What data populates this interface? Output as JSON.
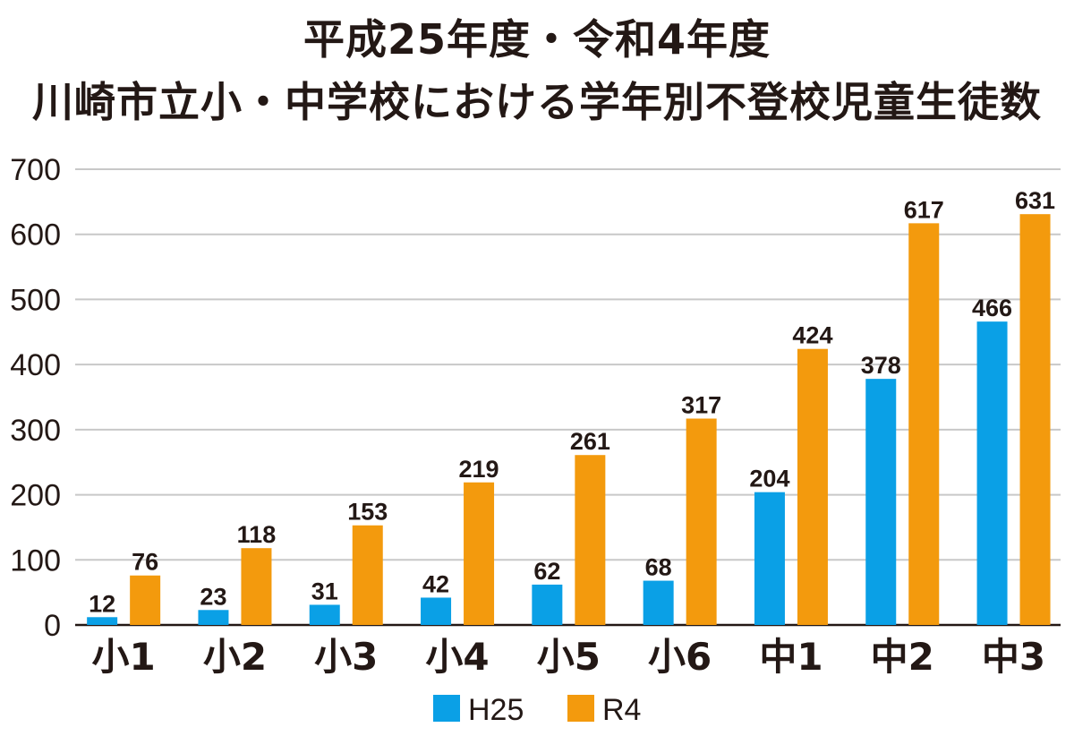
{
  "chart_data": {
    "type": "bar",
    "title": "平成25年度・令和4年度",
    "subtitle": "川崎市立小・中学校における学年別不登校児童生徒数",
    "categories": [
      "小1",
      "小2",
      "小3",
      "小4",
      "小5",
      "小6",
      "中1",
      "中2",
      "中3"
    ],
    "series": [
      {
        "name": "H25",
        "color": "#0aa0e6",
        "values": [
          12,
          23,
          31,
          42,
          62,
          68,
          204,
          378,
          466
        ]
      },
      {
        "name": "R4",
        "color": "#f39a0d",
        "values": [
          76,
          118,
          153,
          219,
          261,
          317,
          424,
          617,
          631
        ]
      }
    ],
    "ylim": [
      0,
      700
    ],
    "yticks": [
      0,
      100,
      200,
      300,
      400,
      500,
      600,
      700
    ],
    "xlabel": "",
    "ylabel": "",
    "grid": true,
    "legend_position": "bottom-center",
    "gridline_color": "#c8c8c8",
    "axis_color": "#231815"
  }
}
